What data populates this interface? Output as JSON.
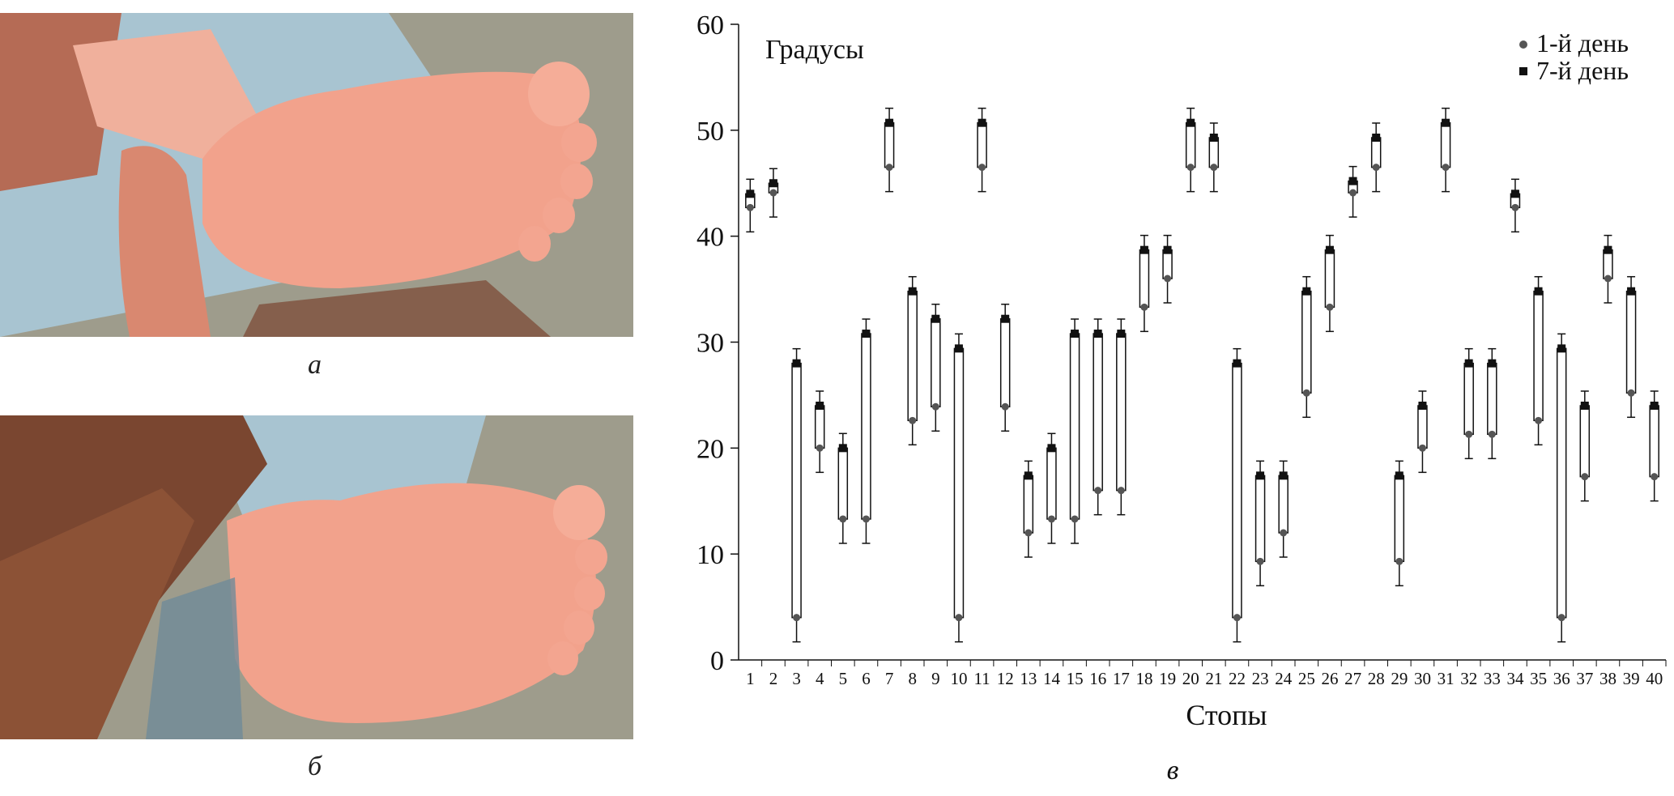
{
  "panels": {
    "a": {
      "caption": "а"
    },
    "b": {
      "caption": "б"
    },
    "c": {
      "caption": "в"
    }
  },
  "colors": {
    "skin": "#f2a28c",
    "skin_shadow": "#e18674",
    "hand_dark": "#7a4630",
    "cloth": "#a9c9d8",
    "background": "#9e9c8c",
    "marker": "#111111",
    "dot": "#555555"
  },
  "chart_data": {
    "type": "range-bar",
    "title": "",
    "ylabel": "Градусы",
    "xlabel": "Стопы",
    "ylim": [
      0,
      60
    ],
    "yticks": [
      0,
      10,
      20,
      30,
      40,
      50,
      60
    ],
    "grid": false,
    "legend_position": "top-right",
    "series": [
      {
        "name": "1-й день",
        "marker": "circle"
      },
      {
        "name": "7-й день",
        "marker": "square"
      }
    ],
    "categories": [
      "1",
      "2",
      "3",
      "4",
      "5",
      "6",
      "7",
      "8",
      "9",
      "10",
      "11",
      "12",
      "13",
      "14",
      "15",
      "16",
      "17",
      "18",
      "19",
      "20",
      "21",
      "22",
      "23",
      "24",
      "25",
      "26",
      "27",
      "28",
      "29",
      "30",
      "31",
      "32",
      "33",
      "34",
      "35",
      "36",
      "37",
      "38",
      "39",
      "40"
    ],
    "day1": [
      42.7,
      44.1,
      4,
      20,
      13.3,
      13.3,
      46.5,
      22.6,
      23.9,
      4,
      46.5,
      23.9,
      12,
      13.3,
      13.3,
      16,
      16,
      33.3,
      36,
      46.5,
      46.5,
      4,
      9.3,
      12,
      25.2,
      33.3,
      44.1,
      46.5,
      9.3,
      20,
      46.5,
      21.3,
      21.3,
      42.7,
      22.6,
      4,
      17.3,
      36,
      25.2,
      17.3
    ],
    "day7": [
      44,
      45,
      28,
      24,
      20,
      30.8,
      50.7,
      34.8,
      32.2,
      29.4,
      50.7,
      32.2,
      17.4,
      20,
      30.8,
      30.8,
      30.8,
      38.7,
      38.7,
      50.7,
      49.3,
      28,
      17.4,
      17.4,
      34.8,
      38.7,
      45.2,
      49.3,
      17.4,
      24,
      50.7,
      28,
      28,
      44,
      34.8,
      29.4,
      24,
      38.7,
      34.8,
      24
    ]
  }
}
